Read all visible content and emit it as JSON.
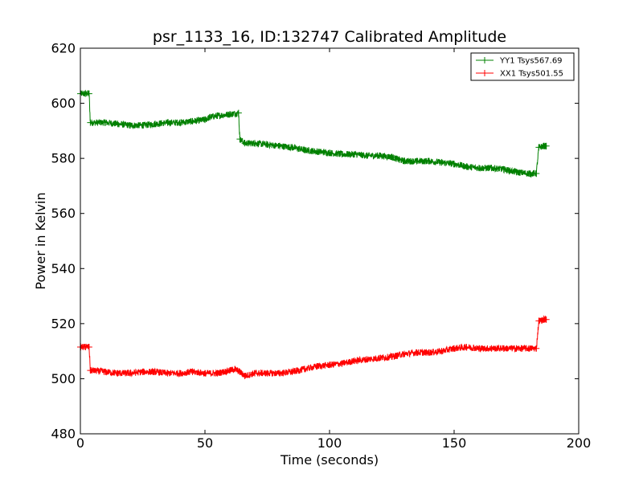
{
  "chart_data": {
    "type": "line",
    "title": "psr_1133_16, ID:132747 Calibrated Amplitude",
    "xlabel": "Time (seconds)",
    "ylabel": "Power in Kelvin",
    "xlim": [
      0,
      200
    ],
    "ylim": [
      480,
      620
    ],
    "xticks": [
      0,
      50,
      100,
      150,
      200
    ],
    "yticks": [
      480,
      500,
      520,
      540,
      560,
      580,
      600,
      620
    ],
    "grid": false,
    "legend_position": "top-right",
    "series": [
      {
        "name": "YY1 Tsys567.69",
        "color": "#008000",
        "x": [
          0,
          2,
          3.5,
          4,
          10,
          15,
          20,
          25,
          30,
          35,
          40,
          45,
          50,
          52,
          55,
          60,
          63.5,
          64,
          66,
          70,
          75,
          80,
          85,
          90,
          95,
          100,
          105,
          110,
          115,
          120,
          125,
          128,
          130,
          135,
          140,
          145,
          150,
          155,
          160,
          165,
          170,
          175,
          180,
          183,
          184,
          186,
          187
        ],
        "values": [
          603.5,
          603.5,
          603.5,
          593,
          593,
          592.5,
          592,
          592,
          592.5,
          593,
          593,
          593.5,
          594,
          595,
          595.5,
          596,
          596.5,
          587,
          585.5,
          585.5,
          585,
          584.5,
          584,
          583,
          582.5,
          582,
          581.5,
          581.5,
          581,
          581,
          580.5,
          579.5,
          579,
          579,
          579,
          578.5,
          578,
          577,
          576.5,
          576.5,
          576,
          575,
          574.5,
          574.5,
          584,
          584.5,
          584.5
        ]
      },
      {
        "name": "XX1 Tsys501.55",
        "color": "#ff0000",
        "x": [
          0,
          2,
          3.5,
          4,
          10,
          15,
          20,
          25,
          30,
          35,
          40,
          45,
          50,
          55,
          60,
          62,
          64,
          66,
          70,
          75,
          80,
          85,
          90,
          95,
          100,
          105,
          110,
          115,
          120,
          125,
          130,
          135,
          140,
          145,
          150,
          155,
          160,
          165,
          170,
          175,
          180,
          183,
          184,
          186,
          187
        ],
        "values": [
          511.5,
          511.5,
          511.5,
          503,
          502.5,
          502,
          502,
          502.5,
          502.5,
          502,
          502,
          502.5,
          502,
          502,
          503,
          503.5,
          502.5,
          501,
          502,
          502,
          502,
          502.5,
          503.5,
          504.5,
          505,
          505.5,
          506.5,
          507,
          507.5,
          508,
          509,
          509.5,
          509.5,
          510,
          511,
          511.5,
          511,
          511,
          511,
          511,
          511,
          511,
          521,
          521.5,
          521.5
        ]
      }
    ]
  }
}
